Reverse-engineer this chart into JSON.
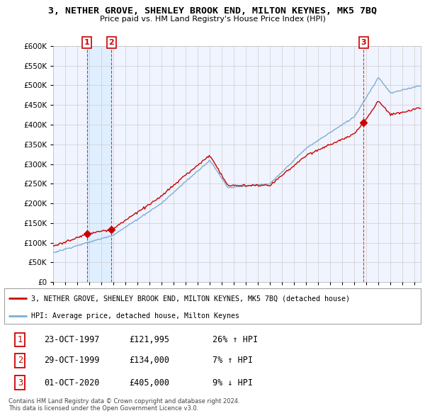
{
  "title": "3, NETHER GROVE, SHENLEY BROOK END, MILTON KEYNES, MK5 7BQ",
  "subtitle": "Price paid vs. HM Land Registry's House Price Index (HPI)",
  "ylim": [
    0,
    600000
  ],
  "yticks": [
    0,
    50000,
    100000,
    150000,
    200000,
    250000,
    300000,
    350000,
    400000,
    450000,
    500000,
    550000,
    600000
  ],
  "xlim_start": 1995.0,
  "xlim_end": 2025.5,
  "sale_dates": [
    1997.81,
    1999.83,
    2020.75
  ],
  "sale_prices": [
    121995,
    134000,
    405000
  ],
  "sale_labels": [
    "1",
    "2",
    "3"
  ],
  "hpi_color": "#7bafd4",
  "price_color": "#cc0000",
  "shade_color": "#ddeeff",
  "legend_line1": "3, NETHER GROVE, SHENLEY BROOK END, MILTON KEYNES, MK5 7BQ (detached house)",
  "legend_line2": "HPI: Average price, detached house, Milton Keynes",
  "table_data": [
    [
      "1",
      "23-OCT-1997",
      "£121,995",
      "26% ↑ HPI"
    ],
    [
      "2",
      "29-OCT-1999",
      "£134,000",
      "7% ↑ HPI"
    ],
    [
      "3",
      "01-OCT-2020",
      "£405,000",
      "9% ↓ HPI"
    ]
  ],
  "footer": "Contains HM Land Registry data © Crown copyright and database right 2024.\nThis data is licensed under the Open Government Licence v3.0.",
  "background_color": "#ffffff",
  "grid_color": "#cccccc",
  "chart_bg": "#f0f4ff"
}
